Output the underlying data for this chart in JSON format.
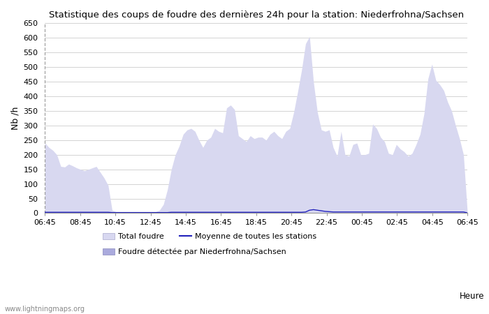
{
  "title": "Statistique des coups de foudre des dernières 24h pour la station: Niederfrohna/Sachsen",
  "xlabel": "Heure",
  "ylabel": "Nb /h",
  "xlim_labels": [
    "06:45",
    "08:45",
    "10:45",
    "12:45",
    "14:45",
    "16:45",
    "18:45",
    "20:45",
    "22:45",
    "00:45",
    "02:45",
    "04:45",
    "06:45"
  ],
  "yticks": [
    0,
    50,
    100,
    150,
    200,
    250,
    300,
    350,
    400,
    450,
    500,
    550,
    600,
    650
  ],
  "ylim": [
    0,
    650
  ],
  "background_color": "#ffffff",
  "plot_background": "#ffffff",
  "grid_color": "#cccccc",
  "fill_total_color": "#d8d8f0",
  "fill_local_color": "#aaaadd",
  "mean_line_color": "#2222bb",
  "watermark": "www.lightningmaps.org",
  "legend": {
    "total_label": "Total foudre",
    "mean_label": "Moyenne de toutes les stations",
    "local_label": "Foudre détectée par Niederfrohna/Sachsen"
  },
  "total_foudre": [
    240,
    225,
    215,
    200,
    160,
    158,
    168,
    162,
    155,
    150,
    145,
    150,
    155,
    160,
    140,
    120,
    95,
    10,
    5,
    5,
    5,
    5,
    5,
    5,
    5,
    5,
    5,
    5,
    5,
    10,
    30,
    80,
    150,
    200,
    230,
    270,
    285,
    290,
    280,
    250,
    225,
    250,
    260,
    290,
    280,
    275,
    360,
    370,
    355,
    265,
    255,
    245,
    265,
    255,
    260,
    260,
    250,
    270,
    280,
    265,
    255,
    280,
    290,
    345,
    415,
    490,
    580,
    605,
    450,
    345,
    285,
    280,
    285,
    225,
    195,
    280,
    200,
    195,
    235,
    240,
    200,
    200,
    205,
    305,
    290,
    260,
    245,
    205,
    200,
    235,
    220,
    210,
    195,
    205,
    235,
    270,
    340,
    460,
    510,
    455,
    440,
    420,
    380,
    350,
    300,
    255,
    200,
    0
  ],
  "mean_line": [
    3,
    3,
    3,
    3,
    3,
    3,
    3,
    3,
    3,
    3,
    3,
    3,
    3,
    3,
    3,
    3,
    3,
    2,
    2,
    2,
    2,
    2,
    2,
    2,
    2,
    2,
    2,
    2,
    2,
    2,
    2,
    2,
    3,
    3,
    3,
    3,
    3,
    3,
    3,
    3,
    3,
    3,
    3,
    3,
    3,
    3,
    3,
    3,
    3,
    3,
    3,
    3,
    3,
    3,
    3,
    3,
    3,
    3,
    3,
    3,
    3,
    3,
    3,
    3,
    3,
    3,
    4,
    10,
    12,
    10,
    8,
    6,
    5,
    4,
    4,
    4,
    4,
    4,
    4,
    4,
    4,
    4,
    4,
    4,
    4,
    4,
    4,
    4,
    4,
    4,
    4,
    4,
    4,
    4,
    4,
    4,
    4,
    4,
    4,
    4,
    4,
    4,
    4,
    4,
    4,
    4,
    4,
    1
  ],
  "n_points": 108
}
